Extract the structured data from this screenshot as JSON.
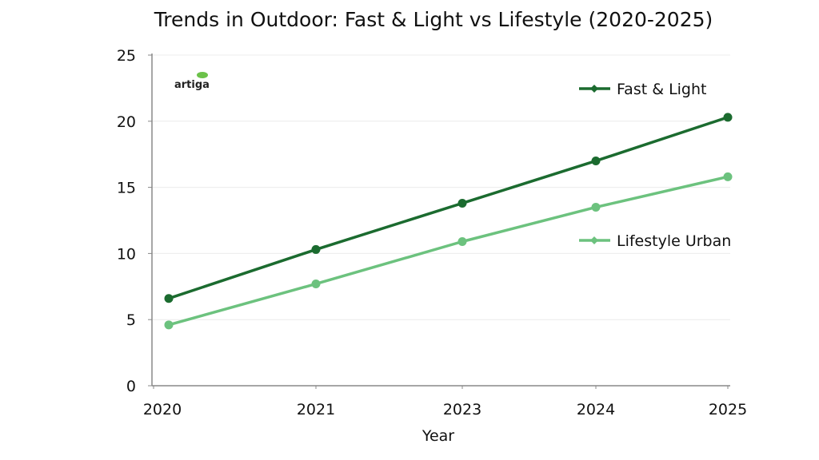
{
  "chart_data": {
    "type": "line",
    "title": "Trends in Outdoor: Fast & Light vs Lifestyle (2020-2025)",
    "xlabel": "Year",
    "ylabel": "",
    "categories": [
      "2020",
      "2021",
      "2023",
      "2024",
      "2025"
    ],
    "ylim": [
      0,
      25
    ],
    "yticks": [
      "0",
      "5",
      "10",
      "15",
      "20",
      "25"
    ],
    "grid": true,
    "legend_position": "right",
    "series": [
      {
        "name": "Fast & Light",
        "color": "#1b6b2f",
        "values": [
          6.6,
          10.3,
          13.8,
          17.0,
          20.3
        ]
      },
      {
        "name": "Lifestyle Urban",
        "color": "#6cc27e",
        "values": [
          4.6,
          7.7,
          10.9,
          13.5,
          15.8
        ]
      }
    ]
  },
  "logo": {
    "text": "artiga",
    "leaf_color": "#6cc24a"
  }
}
